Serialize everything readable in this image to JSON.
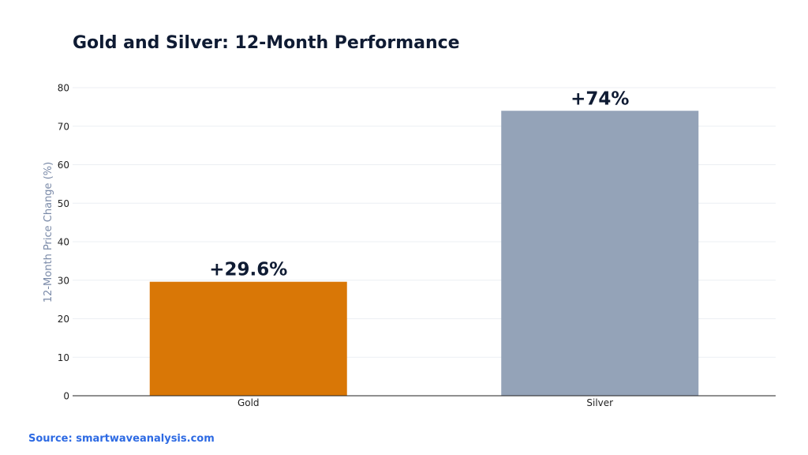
{
  "chart_data": {
    "type": "bar",
    "title": "Gold and Silver: 12-Month Performance",
    "ylabel": "12-Month Price Change (%)",
    "xlabel": "",
    "categories": [
      "Gold",
      "Silver"
    ],
    "values": [
      29.6,
      74
    ],
    "data_labels": [
      "+29.6%",
      "+74%"
    ],
    "colors": [
      "#d97706",
      "#94a3b8"
    ],
    "ylim": [
      0,
      80
    ],
    "yticks": [
      0,
      10,
      20,
      30,
      40,
      50,
      60,
      70,
      80
    ],
    "grid": true,
    "legend": "none"
  },
  "source": "Source: smartwaveanalysis.com"
}
